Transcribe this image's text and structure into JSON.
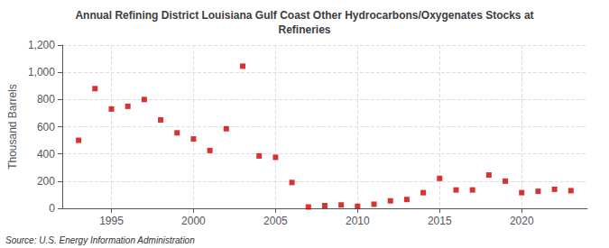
{
  "chart_data": {
    "type": "scatter",
    "title": "Annual Refining District Louisiana Gulf Coast Other Hydrocarbons/Oxygenates Stocks at\nRefineries",
    "ylabel": "Thousand Barrels",
    "annotation": "Source: U.S. Energy Information Administration",
    "x": [
      1993,
      1994,
      1995,
      1996,
      1997,
      1998,
      1999,
      2000,
      2001,
      2002,
      2003,
      2004,
      2005,
      2006,
      2007,
      2008,
      2009,
      2010,
      2011,
      2012,
      2013,
      2014,
      2015,
      2016,
      2017,
      2018,
      2019,
      2020,
      2021,
      2022,
      2023
    ],
    "values": [
      500,
      880,
      730,
      750,
      800,
      650,
      555,
      510,
      425,
      585,
      1045,
      385,
      375,
      190,
      10,
      20,
      25,
      15,
      30,
      55,
      65,
      115,
      220,
      135,
      135,
      245,
      200,
      115,
      125,
      140,
      130
    ],
    "color": "#cc0000",
    "marker": "square",
    "xlim": [
      1992,
      2024
    ],
    "xticks": [
      1995,
      2000,
      2005,
      2010,
      2015,
      2020
    ],
    "ylim": [
      0,
      1200
    ],
    "yticks": [
      0,
      200,
      400,
      600,
      800,
      {
        "value": 1000,
        "label": "1,000"
      },
      {
        "value": 1200,
        "label": "1,200"
      }
    ],
    "grid": true
  }
}
